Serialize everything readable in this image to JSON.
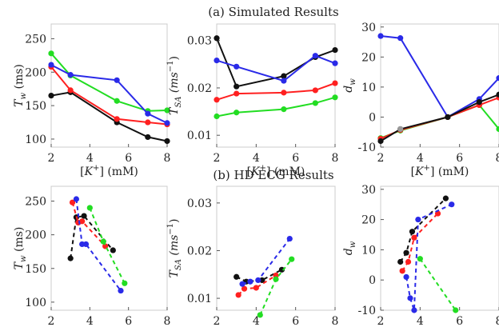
{
  "titles": {
    "top": "(a) Simulated Results",
    "bottom": "(b) HD ECG Results"
  },
  "colors": {
    "black": "#111111",
    "red": "#ff2020",
    "blue": "#2a2ae8",
    "green": "#22dd22",
    "gray": "#999999",
    "frame": "#cccccc"
  },
  "chart_data": [
    {
      "type": "line",
      "panel": "a1",
      "xlabel": "[K+] (mM)",
      "ylabel": "T_w (ms)",
      "xlim": [
        2,
        8
      ],
      "ylim": [
        88,
        272
      ],
      "xticks": [
        2,
        4,
        6,
        8
      ],
      "yticks": [
        100,
        150,
        200,
        250
      ],
      "series": [
        {
          "color": "black",
          "x": [
            2,
            3,
            5.4,
            7,
            8
          ],
          "y": [
            165,
            170,
            125,
            103,
            97
          ]
        },
        {
          "color": "red",
          "x": [
            2,
            3,
            5.4,
            7,
            8
          ],
          "y": [
            208,
            173,
            130,
            125,
            122
          ]
        },
        {
          "color": "green",
          "x": [
            2,
            3,
            5.4,
            7,
            8
          ],
          "y": [
            228,
            195,
            157,
            142,
            143
          ]
        },
        {
          "color": "blue",
          "x": [
            2,
            3,
            5.4,
            7,
            8
          ],
          "y": [
            211,
            196,
            188,
            138,
            124
          ]
        }
      ]
    },
    {
      "type": "line",
      "panel": "a2",
      "xlabel": "[K+] (mM)",
      "ylabel": "T_SA (ms^-1)",
      "xlim": [
        2,
        8
      ],
      "ylim": [
        0.0075,
        0.0335
      ],
      "xticks": [
        2,
        4,
        6,
        8
      ],
      "yticks": [
        0.01,
        0.02,
        0.03
      ],
      "series": [
        {
          "color": "black",
          "x": [
            2,
            3,
            5.4,
            7,
            8
          ],
          "y": [
            0.0305,
            0.0203,
            0.0225,
            0.0265,
            0.028
          ]
        },
        {
          "color": "blue",
          "x": [
            2,
            3,
            5.4,
            7,
            8
          ],
          "y": [
            0.0258,
            0.0245,
            0.0215,
            0.0268,
            0.0252
          ]
        },
        {
          "color": "red",
          "x": [
            2,
            3,
            5.4,
            7,
            8
          ],
          "y": [
            0.0175,
            0.0188,
            0.019,
            0.0195,
            0.021
          ]
        },
        {
          "color": "green",
          "x": [
            2,
            3,
            5.4,
            7,
            8
          ],
          "y": [
            0.014,
            0.0148,
            0.0155,
            0.0168,
            0.018
          ]
        }
      ]
    },
    {
      "type": "line",
      "panel": "a3",
      "xlabel": "[K+] (mM)",
      "ylabel": "d_w",
      "xlim": [
        2,
        8
      ],
      "ylim": [
        -10,
        31
      ],
      "xticks": [
        2,
        4,
        6,
        8
      ],
      "yticks": [
        -10,
        0,
        10,
        20,
        30
      ],
      "series": [
        {
          "color": "blue",
          "x": [
            2,
            3,
            5.4,
            7,
            8
          ],
          "y": [
            27,
            26.3,
            0,
            6,
            13
          ]
        },
        {
          "color": "green",
          "x": [
            2,
            3,
            5.4,
            7,
            8
          ],
          "y": [
            -7,
            -4.5,
            0,
            4,
            -4
          ]
        },
        {
          "color": "red",
          "x": [
            2,
            3,
            5.4,
            7,
            8
          ],
          "y": [
            -7.2,
            -4.3,
            0,
            4,
            6.5
          ]
        },
        {
          "color": "black",
          "x": [
            2,
            3,
            5.4,
            7,
            8
          ],
          "y": [
            -8,
            -4,
            0,
            5,
            7.5
          ]
        },
        {
          "color": "gray",
          "x": [
            3
          ],
          "y": [
            -4
          ]
        }
      ]
    },
    {
      "type": "scatter",
      "panel": "b1",
      "xlabel": "[K+] (mM)",
      "ylabel": "T_w (ms)",
      "xlim": [
        2,
        8
      ],
      "ylim": [
        88,
        272
      ],
      "xticks": [
        2,
        4,
        6,
        8
      ],
      "yticks": [
        100,
        150,
        200,
        250
      ],
      "series": [
        {
          "color": "black",
          "x": [
            3.0,
            3.3,
            3.7,
            5.2
          ],
          "y": [
            165,
            226,
            228,
            177
          ]
        },
        {
          "color": "red",
          "x": [
            3.1,
            3.4,
            3.6,
            4.8
          ],
          "y": [
            248,
            218,
            220,
            183
          ]
        },
        {
          "color": "blue",
          "x": [
            3.3,
            3.6,
            3.8,
            5.6
          ],
          "y": [
            253,
            186,
            186,
            117
          ]
        },
        {
          "color": "green",
          "x": [
            4.0,
            4.7,
            5.8
          ],
          "y": [
            240,
            190,
            128
          ]
        }
      ]
    },
    {
      "type": "scatter",
      "panel": "b2",
      "xlabel": "[K+] (mM)",
      "ylabel": "T_SA (ms^-1)",
      "xlim": [
        2,
        8
      ],
      "ylim": [
        0.0075,
        0.0335
      ],
      "xticks": [
        2,
        4,
        6,
        8
      ],
      "yticks": [
        0.01,
        0.02,
        0.03
      ],
      "series": [
        {
          "color": "black",
          "x": [
            3.0,
            3.5,
            4.3,
            5.3
          ],
          "y": [
            0.0145,
            0.0135,
            0.0138,
            0.016
          ]
        },
        {
          "color": "red",
          "x": [
            3.1,
            3.4,
            4.0,
            5.0
          ],
          "y": [
            0.0107,
            0.012,
            0.0122,
            0.0148
          ]
        },
        {
          "color": "blue",
          "x": [
            3.3,
            3.7,
            4.1,
            5.7
          ],
          "y": [
            0.013,
            0.0135,
            0.0138,
            0.0225
          ]
        },
        {
          "color": "green",
          "x": [
            4.2,
            5.0,
            5.8
          ],
          "y": [
            0.0065,
            0.014,
            0.0182
          ]
        }
      ]
    },
    {
      "type": "scatter",
      "panel": "b3",
      "xlabel": "[K+] (mM)",
      "ylabel": "d_w",
      "xlim": [
        2,
        8
      ],
      "ylim": [
        -10,
        31
      ],
      "xticks": [
        2,
        4,
        6,
        8
      ],
      "yticks": [
        -10,
        0,
        10,
        20,
        30
      ],
      "series": [
        {
          "color": "black",
          "x": [
            3.0,
            3.3,
            3.6,
            5.3
          ],
          "y": [
            6,
            9,
            16,
            27
          ]
        },
        {
          "color": "red",
          "x": [
            3.1,
            3.4,
            3.7,
            4.9
          ],
          "y": [
            3,
            6,
            14,
            22
          ]
        },
        {
          "color": "blue",
          "x": [
            3.3,
            3.5,
            3.7,
            3.9,
            5.6
          ],
          "y": [
            1,
            -6,
            -10,
            20,
            25
          ]
        },
        {
          "color": "green",
          "x": [
            4.0,
            5.8
          ],
          "y": [
            7,
            -10
          ]
        }
      ]
    }
  ]
}
